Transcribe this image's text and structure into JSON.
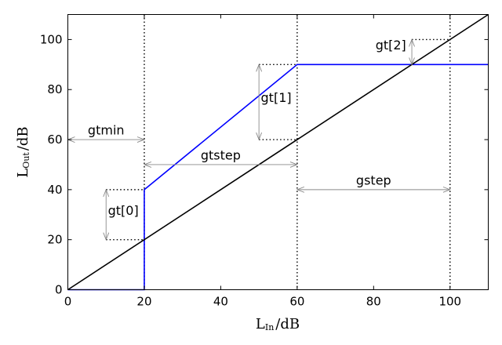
{
  "chart_data": {
    "type": "line",
    "xlim": [
      0,
      110
    ],
    "ylim": [
      0,
      110
    ],
    "x_ticks": [
      0,
      20,
      40,
      60,
      80,
      100
    ],
    "y_ticks": [
      0,
      20,
      40,
      60,
      80,
      100
    ],
    "x_tick_labels": [
      "0",
      "20",
      "40",
      "60",
      "80",
      "100"
    ],
    "y_tick_labels": [
      "0",
      "20",
      "40",
      "60",
      "80",
      "100"
    ],
    "xlabel": {
      "main": "L",
      "sub": "In",
      "unit": "/dB"
    },
    "ylabel": {
      "main": "L",
      "sub": "Out",
      "unit": "/dB"
    },
    "series": [
      {
        "color": "#0000ff",
        "x": [
          0,
          20,
          20,
          60,
          110
        ],
        "y": [
          0,
          0,
          40,
          90,
          90
        ]
      },
      {
        "color": "#000000",
        "x": [
          0,
          110
        ],
        "y": [
          0,
          110
        ]
      }
    ],
    "vlines": [
      20,
      60,
      100
    ],
    "dotted_segments": [
      {
        "x": [
          10,
          20
        ],
        "y": [
          40,
          40
        ]
      },
      {
        "x": [
          10,
          20
        ],
        "y": [
          20,
          20
        ]
      },
      {
        "x": [
          50,
          60
        ],
        "y": [
          90,
          90
        ]
      },
      {
        "x": [
          50,
          60
        ],
        "y": [
          60,
          60
        ]
      },
      {
        "x": [
          90,
          100
        ],
        "y": [
          100,
          100
        ]
      }
    ],
    "annotations": [
      {
        "text": "gtmin",
        "arrow_from": [
          0,
          60
        ],
        "arrow_to": [
          20,
          60
        ],
        "text_at": [
          10,
          62
        ]
      },
      {
        "text": "gtstep",
        "arrow_from": [
          20,
          50
        ],
        "arrow_to": [
          60,
          50
        ],
        "text_at": [
          40,
          52
        ]
      },
      {
        "text": "gstep",
        "arrow_from": [
          60,
          40
        ],
        "arrow_to": [
          100,
          40
        ],
        "text_at": [
          80,
          42
        ]
      },
      {
        "text": "gt[0]",
        "arrow_from": [
          10,
          20
        ],
        "arrow_to": [
          10,
          40
        ],
        "text_at": [
          14.5,
          30
        ]
      },
      {
        "text": "gt[1]",
        "arrow_from": [
          50,
          60
        ],
        "arrow_to": [
          50,
          90
        ],
        "text_at": [
          54.5,
          75
        ]
      },
      {
        "text": "gt[2]",
        "arrow_from": [
          90,
          90
        ],
        "arrow_to": [
          90,
          100
        ],
        "text_at": [
          84.5,
          96
        ]
      }
    ],
    "grid": false,
    "legend": "none"
  }
}
